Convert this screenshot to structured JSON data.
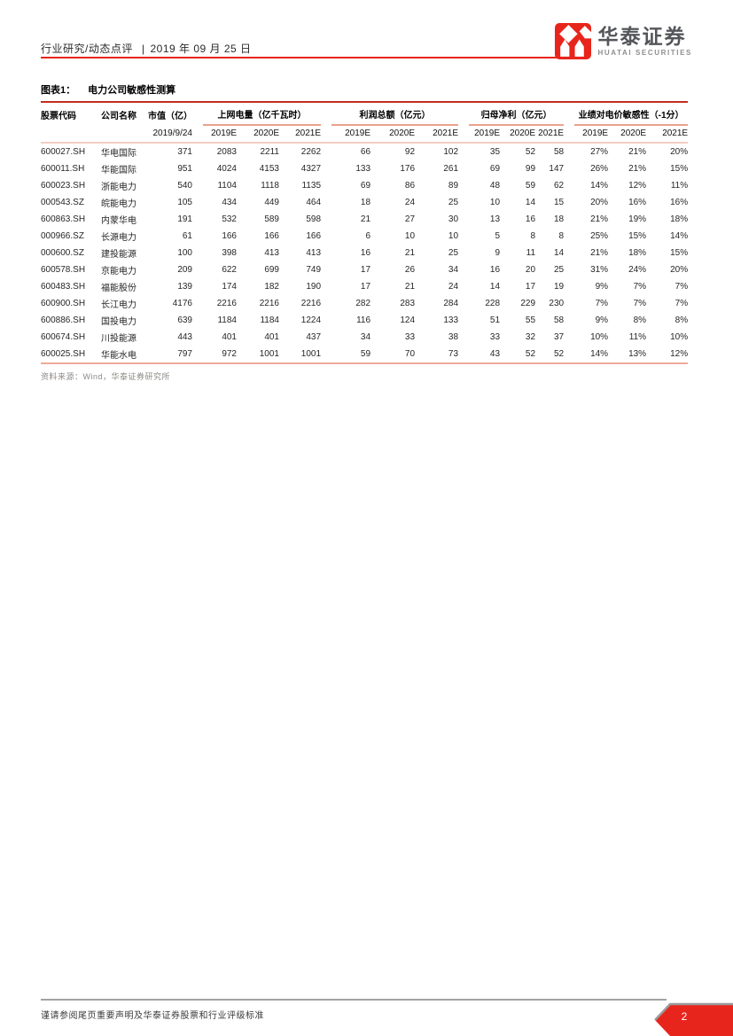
{
  "header": {
    "section": "行业研究/动态点评",
    "separator": "|",
    "date": "2019 年 09 月 25 日"
  },
  "logo": {
    "name_cn": "华泰证券",
    "name_en": "HUATAI SECURITIES"
  },
  "figure": {
    "label": "图表1：",
    "title": "电力公司敏感性测算"
  },
  "table": {
    "col_headers": {
      "code": "股票代码",
      "name": "公司名称",
      "mktcap": "市值（亿）",
      "mktcap_date": "2019/9/24",
      "groups": [
        {
          "label": "上网电量（亿千瓦时）",
          "years": [
            "2019E",
            "2020E",
            "2021E"
          ]
        },
        {
          "label": "利润总额（亿元）",
          "years": [
            "2019E",
            "2020E",
            "2021E"
          ]
        },
        {
          "label": "归母净利（亿元）",
          "years": [
            "2019E",
            "2020E",
            "2021E"
          ]
        },
        {
          "label": "业绩对电价敏感性（-1分）",
          "years": [
            "2019E",
            "2020E",
            "2021E"
          ]
        }
      ]
    },
    "rows": [
      [
        "600027.SH",
        "华电国际",
        "371",
        "2083",
        "2211",
        "2262",
        "66",
        "92",
        "102",
        "35",
        "52",
        "58",
        "27%",
        "21%",
        "20%"
      ],
      [
        "600011.SH",
        "华能国际",
        "951",
        "4024",
        "4153",
        "4327",
        "133",
        "176",
        "261",
        "69",
        "99",
        "147",
        "26%",
        "21%",
        "15%"
      ],
      [
        "600023.SH",
        "浙能电力",
        "540",
        "1104",
        "1118",
        "1135",
        "69",
        "86",
        "89",
        "48",
        "59",
        "62",
        "14%",
        "12%",
        "11%"
      ],
      [
        "000543.SZ",
        "皖能电力",
        "105",
        "434",
        "449",
        "464",
        "18",
        "24",
        "25",
        "10",
        "14",
        "15",
        "20%",
        "16%",
        "16%"
      ],
      [
        "600863.SH",
        "内蒙华电",
        "191",
        "532",
        "589",
        "598",
        "21",
        "27",
        "30",
        "13",
        "16",
        "18",
        "21%",
        "19%",
        "18%"
      ],
      [
        "000966.SZ",
        "长源电力",
        "61",
        "166",
        "166",
        "166",
        "6",
        "10",
        "10",
        "5",
        "8",
        "8",
        "25%",
        "15%",
        "14%"
      ],
      [
        "000600.SZ",
        "建投能源",
        "100",
        "398",
        "413",
        "413",
        "16",
        "21",
        "25",
        "9",
        "11",
        "14",
        "21%",
        "18%",
        "15%"
      ],
      [
        "600578.SH",
        "京能电力",
        "209",
        "622",
        "699",
        "749",
        "17",
        "26",
        "34",
        "16",
        "20",
        "25",
        "31%",
        "24%",
        "20%"
      ],
      [
        "600483.SH",
        "福能股份",
        "139",
        "174",
        "182",
        "190",
        "17",
        "21",
        "24",
        "14",
        "17",
        "19",
        "9%",
        "7%",
        "7%"
      ],
      [
        "600900.SH",
        "长江电力",
        "4176",
        "2216",
        "2216",
        "2216",
        "282",
        "283",
        "284",
        "228",
        "229",
        "230",
        "7%",
        "7%",
        "7%"
      ],
      [
        "600886.SH",
        "国投电力",
        "639",
        "1184",
        "1184",
        "1224",
        "116",
        "124",
        "133",
        "51",
        "55",
        "58",
        "9%",
        "8%",
        "8%"
      ],
      [
        "600674.SH",
        "川投能源",
        "443",
        "401",
        "401",
        "437",
        "34",
        "33",
        "38",
        "33",
        "32",
        "37",
        "10%",
        "11%",
        "10%"
      ],
      [
        "600025.SH",
        "华能水电",
        "797",
        "972",
        "1001",
        "1001",
        "59",
        "70",
        "73",
        "43",
        "52",
        "52",
        "14%",
        "13%",
        "12%"
      ]
    ],
    "source": "资料来源：Wind，华泰证券研究所"
  },
  "footer": {
    "disclaimer": "谨请参阅尾页重要声明及华泰证券股票和行业评级标准",
    "page_number": "2"
  },
  "colors": {
    "brand_red": "#e8251c",
    "title_rule_red": "#c22d20",
    "group_underline_salmon": "#e9a18d",
    "subheader_line_salmon": "#f3cdc2",
    "table_bottom_salmon": "#edaa99",
    "footer_gray": "#a3a3a3",
    "logo_text_gray": "#54565a"
  }
}
